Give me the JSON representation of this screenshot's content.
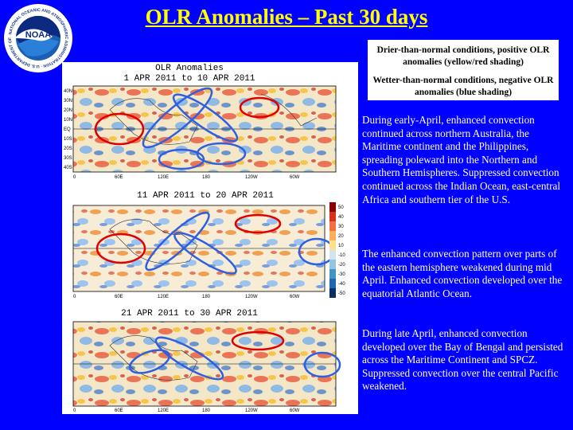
{
  "title": "OLR Anomalies – Past 30 days",
  "legend": {
    "positive": "Drier-than-normal conditions, positive OLR anomalies (yellow/red shading)",
    "negative": "Wetter-than-normal conditions, negative OLR anomalies (blue shading)"
  },
  "logo": {
    "text": "NATIONAL OCEANIC AND ATMOSPHERIC ADMINISTRATION · U.S. DEPARTMENT OF COMMERCE",
    "center": "NOAA"
  },
  "figure": {
    "heading": "OLR Anomalies",
    "maps": [
      {
        "period": "1 APR 2011 to 10 APR 2011"
      },
      {
        "period": "11 APR 2011 to 20 APR 2011"
      },
      {
        "period": "21 APR 2011 to 30 APR 2011"
      }
    ],
    "lat_labels": [
      "40N",
      "30N",
      "20N",
      "10N",
      "EQ",
      "10S",
      "20S",
      "30S",
      "40S"
    ],
    "lon_labels": [
      "0",
      "60E",
      "120E",
      "180",
      "120W",
      "60W"
    ],
    "colorbar": [
      "50",
      "40",
      "30",
      "20",
      "10",
      "-10",
      "-20",
      "-30",
      "-40",
      "-50"
    ]
  },
  "paragraphs": [
    "During early-April, enhanced convection continued across northern Australia, the Maritime continent and the Philippines, spreading poleward into the Northern and Southern Hemispheres. Suppressed convection continued across the Indian Ocean, east-central Africa and southern tier of the U.S.",
    "The enhanced convection pattern over parts of the eastern hemisphere weakened during mid April. Enhanced convection developed over the equatorial Atlantic Ocean.",
    "During late April, enhanced convection developed over the Bay of Bengal and persisted across the Maritime Continent and SPCZ. Suppressed convection over the central Pacific weakened."
  ],
  "colors": {
    "background": "#0000FF",
    "title": "#FFFF00",
    "text": "#FFFFFF",
    "dry_circle": "#E00000",
    "wet_circle": "#3060E0"
  }
}
